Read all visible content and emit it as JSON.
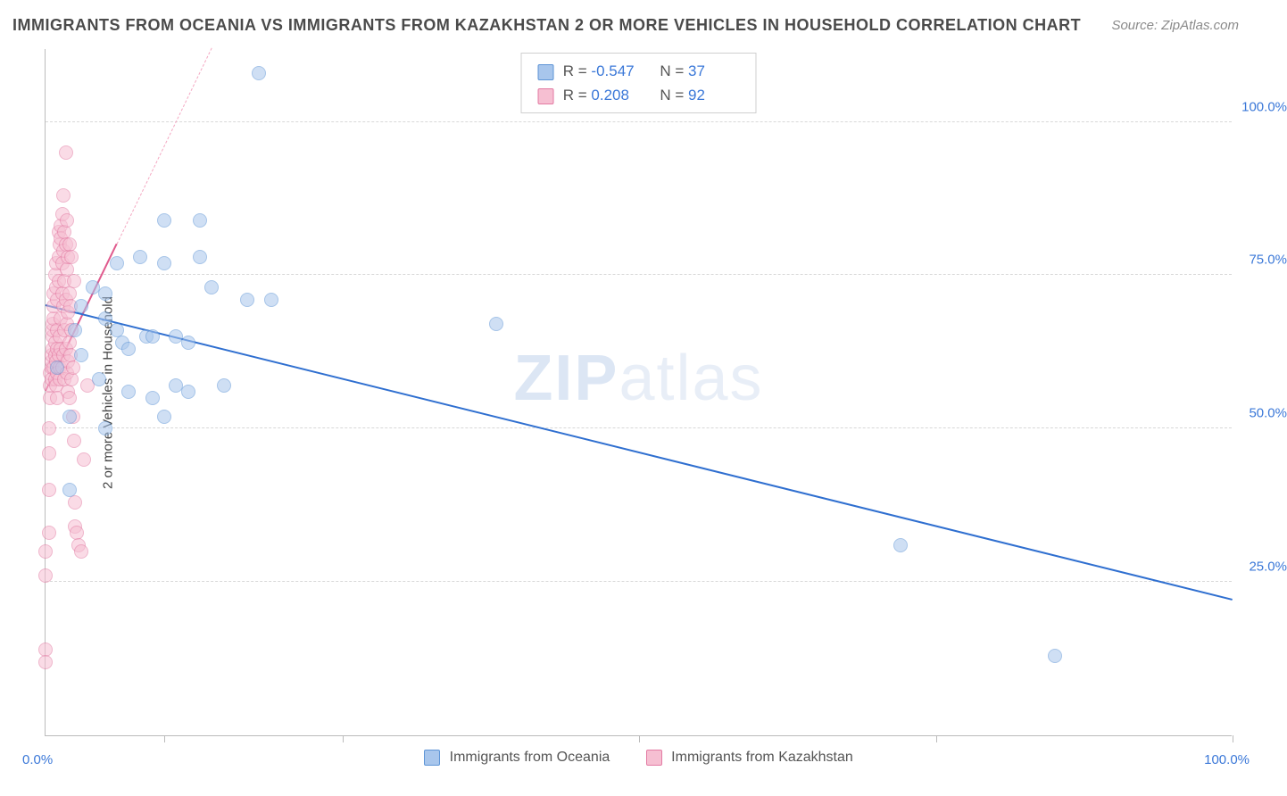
{
  "title": "IMMIGRANTS FROM OCEANIA VS IMMIGRANTS FROM KAZAKHSTAN 2 OR MORE VEHICLES IN HOUSEHOLD CORRELATION CHART",
  "source": "Source: ZipAtlas.com",
  "watermark": {
    "bold": "ZIP",
    "light": "atlas"
  },
  "chart": {
    "type": "scatter",
    "xlim": [
      0,
      100
    ],
    "ylim": [
      0,
      112
    ],
    "grid_h": [
      25,
      50,
      75,
      100
    ],
    "grid_v": [
      10,
      25,
      50,
      75,
      100
    ],
    "ytick_labels": {
      "25": "25.0%",
      "50": "50.0%",
      "75": "75.0%",
      "100": "100.0%"
    },
    "xtick_left": "0.0%",
    "xtick_right": "100.0%",
    "y_axis_title": "2 or more Vehicles in Household",
    "grid_color": "#d8d8d8",
    "marker_radius": 8,
    "marker_opacity": 0.55,
    "marker_border_width": 1.2,
    "background_color": "#ffffff",
    "text_color": "#4a4a4a",
    "tick_label_color": "#3b78d8"
  },
  "series": {
    "oceania": {
      "label": "Immigrants from Oceania",
      "fill": "#a8c6ec",
      "stroke": "#5e95d6",
      "R": "-0.547",
      "N": "37",
      "trend": {
        "x1": 0,
        "y1": 70,
        "x2": 100,
        "y2": 22,
        "width": 2.4,
        "color": "#2f6fd0",
        "dashed": false
      },
      "points": [
        [
          1,
          60
        ],
        [
          2,
          52
        ],
        [
          2,
          40
        ],
        [
          2.5,
          66
        ],
        [
          3,
          62
        ],
        [
          3,
          70
        ],
        [
          4,
          73
        ],
        [
          4.5,
          58
        ],
        [
          5,
          68
        ],
        [
          5,
          72
        ],
        [
          5,
          50
        ],
        [
          6,
          66
        ],
        [
          6,
          77
        ],
        [
          6.5,
          64
        ],
        [
          7,
          56
        ],
        [
          7,
          63
        ],
        [
          8,
          78
        ],
        [
          8.5,
          65
        ],
        [
          9,
          55
        ],
        [
          9,
          65
        ],
        [
          10,
          52
        ],
        [
          10,
          77
        ],
        [
          10,
          84
        ],
        [
          11,
          65
        ],
        [
          11,
          57
        ],
        [
          12,
          64
        ],
        [
          12,
          56
        ],
        [
          13,
          78
        ],
        [
          13,
          84
        ],
        [
          14,
          73
        ],
        [
          15,
          57
        ],
        [
          17,
          71
        ],
        [
          18,
          108
        ],
        [
          19,
          71
        ],
        [
          38,
          67
        ],
        [
          72,
          31
        ],
        [
          85,
          13
        ]
      ]
    },
    "kazakhstan": {
      "label": "Immigrants from Kazakhstan",
      "fill": "#f6bfd2",
      "stroke": "#e37ba3",
      "R": "0.208",
      "N": "92",
      "trend": {
        "x1": 0,
        "y1": 56,
        "x2": 6,
        "y2": 80,
        "width": 2.2,
        "color": "#e05a8d",
        "dashed": false
      },
      "trend_ext": {
        "x1": 6,
        "y1": 80,
        "x2": 14,
        "y2": 112,
        "width": 1.2,
        "color": "#f4a8c2",
        "dashed": true
      },
      "points": [
        [
          0,
          26
        ],
        [
          0,
          14
        ],
        [
          0,
          12
        ],
        [
          0,
          30
        ],
        [
          0.3,
          33
        ],
        [
          0.3,
          40
        ],
        [
          0.3,
          46
        ],
        [
          0.3,
          50
        ],
        [
          0.4,
          55
        ],
        [
          0.4,
          57
        ],
        [
          0.4,
          59
        ],
        [
          0.5,
          60
        ],
        [
          0.5,
          61
        ],
        [
          0.5,
          62
        ],
        [
          0.5,
          58
        ],
        [
          0.6,
          63
        ],
        [
          0.6,
          65
        ],
        [
          0.6,
          66
        ],
        [
          0.6,
          67
        ],
        [
          0.7,
          68
        ],
        [
          0.7,
          70
        ],
        [
          0.7,
          72
        ],
        [
          0.7,
          60
        ],
        [
          0.8,
          58
        ],
        [
          0.8,
          62
        ],
        [
          0.8,
          64
        ],
        [
          0.8,
          75
        ],
        [
          0.9,
          77
        ],
        [
          0.9,
          73
        ],
        [
          0.9,
          61
        ],
        [
          0.9,
          57
        ],
        [
          1,
          55
        ],
        [
          1,
          59
        ],
        [
          1,
          63
        ],
        [
          1,
          66
        ],
        [
          1,
          71
        ],
        [
          1.1,
          74
        ],
        [
          1.1,
          78
        ],
        [
          1.1,
          82
        ],
        [
          1.1,
          62
        ],
        [
          1.2,
          60
        ],
        [
          1.2,
          58
        ],
        [
          1.2,
          65
        ],
        [
          1.2,
          80
        ],
        [
          1.3,
          83
        ],
        [
          1.3,
          81
        ],
        [
          1.3,
          68
        ],
        [
          1.3,
          63
        ],
        [
          1.4,
          60
        ],
        [
          1.4,
          72
        ],
        [
          1.4,
          77
        ],
        [
          1.4,
          85
        ],
        [
          1.5,
          88
        ],
        [
          1.5,
          79
        ],
        [
          1.5,
          70
        ],
        [
          1.5,
          62
        ],
        [
          1.6,
          58
        ],
        [
          1.6,
          66
        ],
        [
          1.6,
          74
        ],
        [
          1.6,
          82
        ],
        [
          1.7,
          95
        ],
        [
          1.7,
          80
        ],
        [
          1.7,
          71
        ],
        [
          1.7,
          63
        ],
        [
          1.8,
          59
        ],
        [
          1.8,
          67
        ],
        [
          1.8,
          76
        ],
        [
          1.8,
          84
        ],
        [
          1.9,
          78
        ],
        [
          1.9,
          69
        ],
        [
          1.9,
          61
        ],
        [
          1.9,
          56
        ],
        [
          2,
          64
        ],
        [
          2,
          72
        ],
        [
          2,
          80
        ],
        [
          2,
          55
        ],
        [
          2.1,
          62
        ],
        [
          2.1,
          70
        ],
        [
          2.2,
          58
        ],
        [
          2.2,
          66
        ],
        [
          2.3,
          60
        ],
        [
          2.3,
          52
        ],
        [
          2.4,
          48
        ],
        [
          2.5,
          38
        ],
        [
          2.5,
          34
        ],
        [
          2.6,
          33
        ],
        [
          2.8,
          31
        ],
        [
          3,
          30
        ],
        [
          3.2,
          45
        ],
        [
          3.5,
          57
        ],
        [
          2.2,
          78
        ],
        [
          2.4,
          74
        ]
      ]
    }
  },
  "stat_legend": {
    "R_label": "R =",
    "N_label": "N ="
  },
  "bottom_legend": {
    "items": [
      "oceania",
      "kazakhstan"
    ]
  }
}
